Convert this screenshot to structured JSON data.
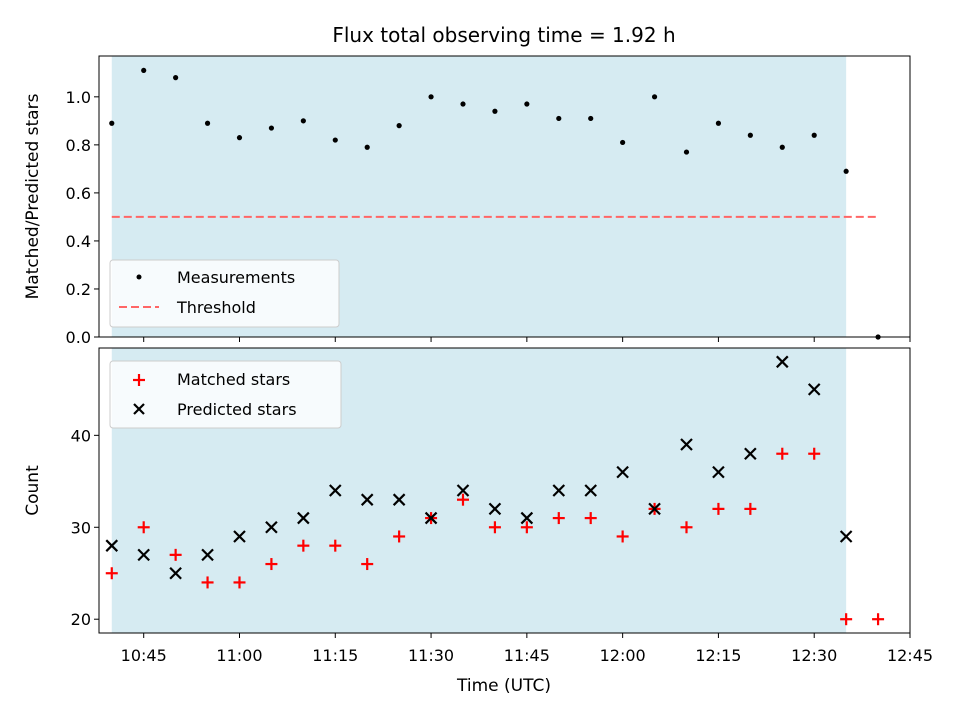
{
  "chart_data": [
    {
      "type": "scatter",
      "title": "Flux total observing time = 1.92 h",
      "ylabel": "Matched/Predicted stars",
      "ylim": [
        0,
        1.17
      ],
      "yticks": [
        0.0,
        0.2,
        0.4,
        0.6,
        0.8,
        1.0
      ],
      "ytick_labels": [
        "0.0",
        "0.2",
        "0.4",
        "0.6",
        "0.8",
        "1.0"
      ],
      "shaded_span": {
        "start": "10:40",
        "end": "12:35",
        "color": "#add8e6"
      },
      "series": [
        {
          "name": "Measurements",
          "marker": "dot",
          "color": "#000000",
          "x": [
            "10:40",
            "10:45",
            "10:50",
            "10:55",
            "11:00",
            "11:05",
            "11:10",
            "11:15",
            "11:20",
            "11:25",
            "11:30",
            "11:35",
            "11:40",
            "11:45",
            "11:50",
            "11:55",
            "12:00",
            "12:05",
            "12:10",
            "12:15",
            "12:20",
            "12:25",
            "12:30",
            "12:35",
            "12:40"
          ],
          "y": [
            0.89,
            1.11,
            1.08,
            0.89,
            0.83,
            0.87,
            0.9,
            0.82,
            0.79,
            0.88,
            1.0,
            0.97,
            0.94,
            0.97,
            0.91,
            0.91,
            0.81,
            1.0,
            0.77,
            0.89,
            0.84,
            0.79,
            0.84,
            0.69,
            0.0
          ]
        },
        {
          "name": "Threshold",
          "type": "line",
          "style": "dashed",
          "color": "#ff6666",
          "x": [
            "10:40",
            "12:40"
          ],
          "y": [
            0.5,
            0.5
          ]
        }
      ],
      "legend": "lower-left"
    },
    {
      "type": "scatter",
      "xlabel": "Time (UTC)",
      "ylabel": "Count",
      "ylim": [
        18.5,
        49.5
      ],
      "yticks": [
        20,
        30,
        40
      ],
      "ytick_labels": [
        "20",
        "30",
        "40"
      ],
      "xlim": [
        "10:38",
        "12:45"
      ],
      "xticks": [
        "10:45",
        "11:00",
        "11:15",
        "11:30",
        "11:45",
        "12:00",
        "12:15",
        "12:30",
        "12:45"
      ],
      "xtick_labels": [
        "10:45",
        "11:00",
        "11:15",
        "11:30",
        "11:45",
        "12:00",
        "12:15",
        "12:30",
        "12:45"
      ],
      "shaded_span": {
        "start": "10:40",
        "end": "12:35",
        "color": "#add8e6"
      },
      "series": [
        {
          "name": "Matched stars",
          "marker": "plus",
          "color": "#ff0000",
          "x": [
            "10:40",
            "10:45",
            "10:50",
            "10:55",
            "11:00",
            "11:05",
            "11:10",
            "11:15",
            "11:20",
            "11:25",
            "11:30",
            "11:35",
            "11:40",
            "11:45",
            "11:50",
            "11:55",
            "12:00",
            "12:05",
            "12:10",
            "12:15",
            "12:20",
            "12:25",
            "12:30",
            "12:35",
            "12:40"
          ],
          "y": [
            25,
            30,
            27,
            24,
            24,
            26,
            28,
            28,
            26,
            29,
            31,
            33,
            30,
            30,
            31,
            31,
            29,
            32,
            30,
            32,
            32,
            38,
            38,
            20,
            20
          ]
        },
        {
          "name": "Predicted stars",
          "marker": "x",
          "color": "#000000",
          "x": [
            "10:40",
            "10:45",
            "10:50",
            "10:55",
            "11:00",
            "11:05",
            "11:10",
            "11:15",
            "11:20",
            "11:25",
            "11:30",
            "11:35",
            "11:40",
            "11:45",
            "11:50",
            "11:55",
            "12:00",
            "12:05",
            "12:10",
            "12:15",
            "12:20",
            "12:25",
            "12:30",
            "12:35"
          ],
          "y": [
            28,
            27,
            25,
            27,
            29,
            30,
            31,
            34,
            33,
            33,
            31,
            34,
            32,
            31,
            34,
            34,
            36,
            32,
            39,
            36,
            38,
            48,
            45,
            29
          ]
        }
      ],
      "legend": "upper-left"
    }
  ]
}
